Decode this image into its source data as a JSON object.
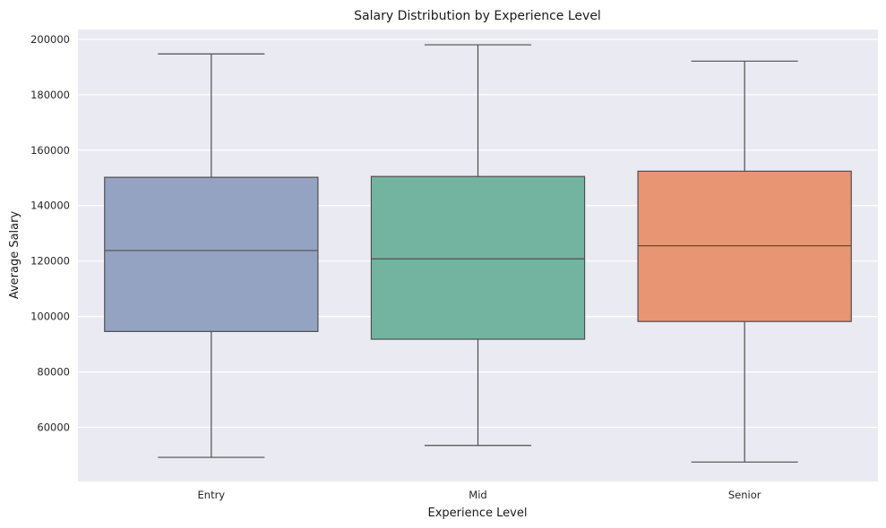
{
  "chart_data": {
    "type": "box",
    "title": "Salary Distribution by Experience Level",
    "xlabel": "Experience Level",
    "ylabel": "Average Salary",
    "categories": [
      "Entry",
      "Mid",
      "Senior"
    ],
    "boxes": [
      {
        "category": "Entry",
        "whisker_low": 49200,
        "q1": 94600,
        "median": 123800,
        "q3": 150200,
        "whisker_high": 194700,
        "color": "#95a3c2"
      },
      {
        "category": "Mid",
        "whisker_low": 53500,
        "q1": 91800,
        "median": 120800,
        "q3": 150500,
        "whisker_high": 198000,
        "color": "#73b4a0"
      },
      {
        "category": "Senior",
        "whisker_low": 47500,
        "q1": 98200,
        "median": 125500,
        "q3": 152400,
        "whisker_high": 192100,
        "color": "#e89573"
      }
    ],
    "yticks": [
      60000,
      80000,
      100000,
      120000,
      140000,
      160000,
      180000,
      200000
    ],
    "ylim": [
      40500,
      203500
    ],
    "grid": true,
    "background": "#eaeaf2"
  }
}
